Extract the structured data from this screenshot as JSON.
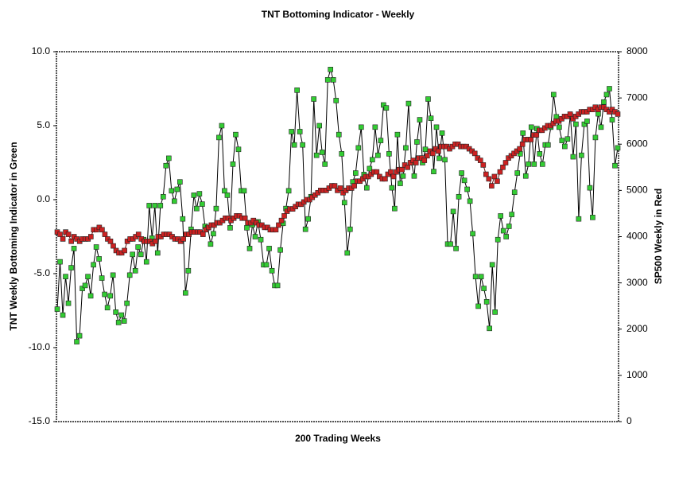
{
  "chart_data": {
    "type": "line",
    "title": "TNT Bottoming Indicator - Weekly",
    "x_label": "200 Trading Weeks",
    "y_label": "TNT Weekly Bottoming Indicator in Green",
    "y2_label": "SP500 Weekly in Red",
    "ylim": [
      -15,
      10
    ],
    "yticks": [
      {
        "value": -15,
        "label": "-15.0"
      },
      {
        "value": -10,
        "label": "-10.0"
      },
      {
        "value": -5,
        "label": "-5.0"
      },
      {
        "value": 0,
        "label": "0.0"
      },
      {
        "value": 5,
        "label": "5.0"
      },
      {
        "value": 10,
        "label": "10.0"
      }
    ],
    "y2lim": [
      0,
      8000
    ],
    "y2ticks": [
      0,
      1000,
      2000,
      3000,
      4000,
      5000,
      6000,
      7000,
      8000
    ],
    "series": [
      {
        "color": "#33cc33",
        "values": [
          -7.4,
          -4.2,
          -7.8,
          -5.2,
          -7.0,
          -4.6,
          -3.3,
          -9.6,
          -9.2,
          -6.0,
          -5.8,
          -5.2,
          -6.5,
          -4.4,
          -3.2,
          -4.0,
          -5.3,
          -6.4,
          -7.3,
          -6.5,
          -5.1,
          -7.6,
          -8.3,
          -7.8,
          -8.2,
          -7.0,
          -5.1,
          -3.7,
          -4.8,
          -3.2,
          -3.7,
          -2.7,
          -4.2,
          -0.4,
          -2.6,
          -0.4,
          -3.6,
          -0.4,
          0.2,
          2.3,
          2.8,
          0.6,
          -0.1,
          0.7,
          1.2,
          -1.3,
          -6.3,
          -4.8,
          -2.0,
          0.3,
          -0.6,
          0.4,
          -0.3,
          -1.8,
          -1.9,
          -3.0,
          -2.3,
          -0.6,
          4.2,
          5.0,
          0.6,
          0.3,
          -1.9,
          2.4,
          4.4,
          3.4,
          0.6,
          0.6,
          -1.9,
          -3.3,
          -1.7,
          -2.5,
          -1.5,
          -2.7,
          -4.4,
          -4.4,
          -3.3,
          -4.8,
          -5.8,
          -5.8,
          -3.4,
          -1.6,
          -0.6,
          0.6,
          4.6,
          3.7,
          7.4,
          4.6,
          3.7,
          -2.0,
          -1.3,
          0.2,
          6.8,
          3.0,
          5.0,
          3.2,
          2.4,
          8.1,
          8.8,
          8.1,
          6.7,
          4.4,
          3.1,
          -0.2,
          -3.6,
          -2.0,
          1.2,
          1.8,
          3.5,
          4.9,
          1.7,
          0.8,
          2.1,
          2.7,
          4.9,
          3.0,
          4.0,
          6.4,
          6.2,
          3.1,
          0.8,
          -0.6,
          4.4,
          1.1,
          1.6,
          3.5,
          6.5,
          2.5,
          1.6,
          3.9,
          5.4,
          2.5,
          3.4,
          6.8,
          5.5,
          1.9,
          4.9,
          2.8,
          4.5,
          2.7,
          -3.0,
          -3.0,
          -0.8,
          -3.3,
          0.2,
          1.8,
          1.3,
          0.7,
          -0.1,
          -2.3,
          -5.2,
          -7.2,
          -5.2,
          -6.0,
          -6.9,
          -8.7,
          -4.4,
          -7.6,
          -2.7,
          -1.1,
          -2.1,
          -2.5,
          -1.8,
          -1.0,
          0.5,
          1.8,
          3.1,
          4.5,
          1.6,
          2.4,
          4.9,
          2.4,
          4.8,
          3.1,
          2.4,
          3.7,
          3.7,
          4.9,
          7.1,
          5.6,
          4.9,
          4.0,
          3.6,
          4.1,
          5.7,
          2.9,
          5.1,
          -1.3,
          3.0,
          5.1,
          5.3,
          0.8,
          -1.2,
          4.2,
          5.8,
          4.9,
          6.6,
          7.1,
          7.5,
          5.4,
          2.3,
          3.5
        ]
      },
      {
        "color": "#cc2222",
        "axis": "y2",
        "values": [
          4100,
          4050,
          3950,
          4100,
          4050,
          3900,
          4000,
          3950,
          3900,
          3950,
          3950,
          3950,
          4000,
          4150,
          4150,
          4200,
          4150,
          4050,
          3950,
          3900,
          3800,
          3700,
          3650,
          3650,
          3700,
          3900,
          3950,
          3950,
          4000,
          4050,
          3950,
          3900,
          3900,
          3900,
          3850,
          3900,
          4000,
          4000,
          4050,
          4050,
          4050,
          4000,
          3950,
          3950,
          3900,
          3950,
          4050,
          4050,
          4100,
          4100,
          4100,
          4100,
          4050,
          4150,
          4200,
          4250,
          4250,
          4300,
          4300,
          4350,
          4400,
          4400,
          4350,
          4400,
          4450,
          4450,
          4400,
          4400,
          4300,
          4300,
          4350,
          4300,
          4250,
          4250,
          4200,
          4200,
          4150,
          4150,
          4150,
          4250,
          4350,
          4450,
          4550,
          4600,
          4600,
          4650,
          4700,
          4700,
          4750,
          4800,
          4800,
          4850,
          4900,
          4950,
          5000,
          5000,
          5000,
          5050,
          5100,
          5100,
          5000,
          5050,
          4950,
          5000,
          5050,
          5050,
          5100,
          5200,
          5200,
          5250,
          5300,
          5300,
          5350,
          5400,
          5400,
          5300,
          5250,
          5250,
          5350,
          5400,
          5300,
          5400,
          5450,
          5450,
          5550,
          5500,
          5600,
          5650,
          5600,
          5700,
          5700,
          5650,
          5750,
          5850,
          5800,
          5900,
          5850,
          5950,
          5950,
          5950,
          5900,
          5950,
          6000,
          6000,
          5950,
          5950,
          5950,
          5900,
          5850,
          5800,
          5700,
          5650,
          5550,
          5350,
          5250,
          5100,
          5300,
          5200,
          5400,
          5500,
          5600,
          5700,
          5750,
          5800,
          5850,
          5900,
          6000,
          6100,
          6100,
          6100,
          6200,
          6200,
          6300,
          6300,
          6350,
          6400,
          6400,
          6450,
          6500,
          6500,
          6550,
          6600,
          6600,
          6650,
          6550,
          6600,
          6650,
          6700,
          6700,
          6700,
          6750,
          6750,
          6800,
          6750,
          6800,
          6800,
          6750,
          6700,
          6750,
          6700,
          6650
        ]
      }
    ]
  }
}
